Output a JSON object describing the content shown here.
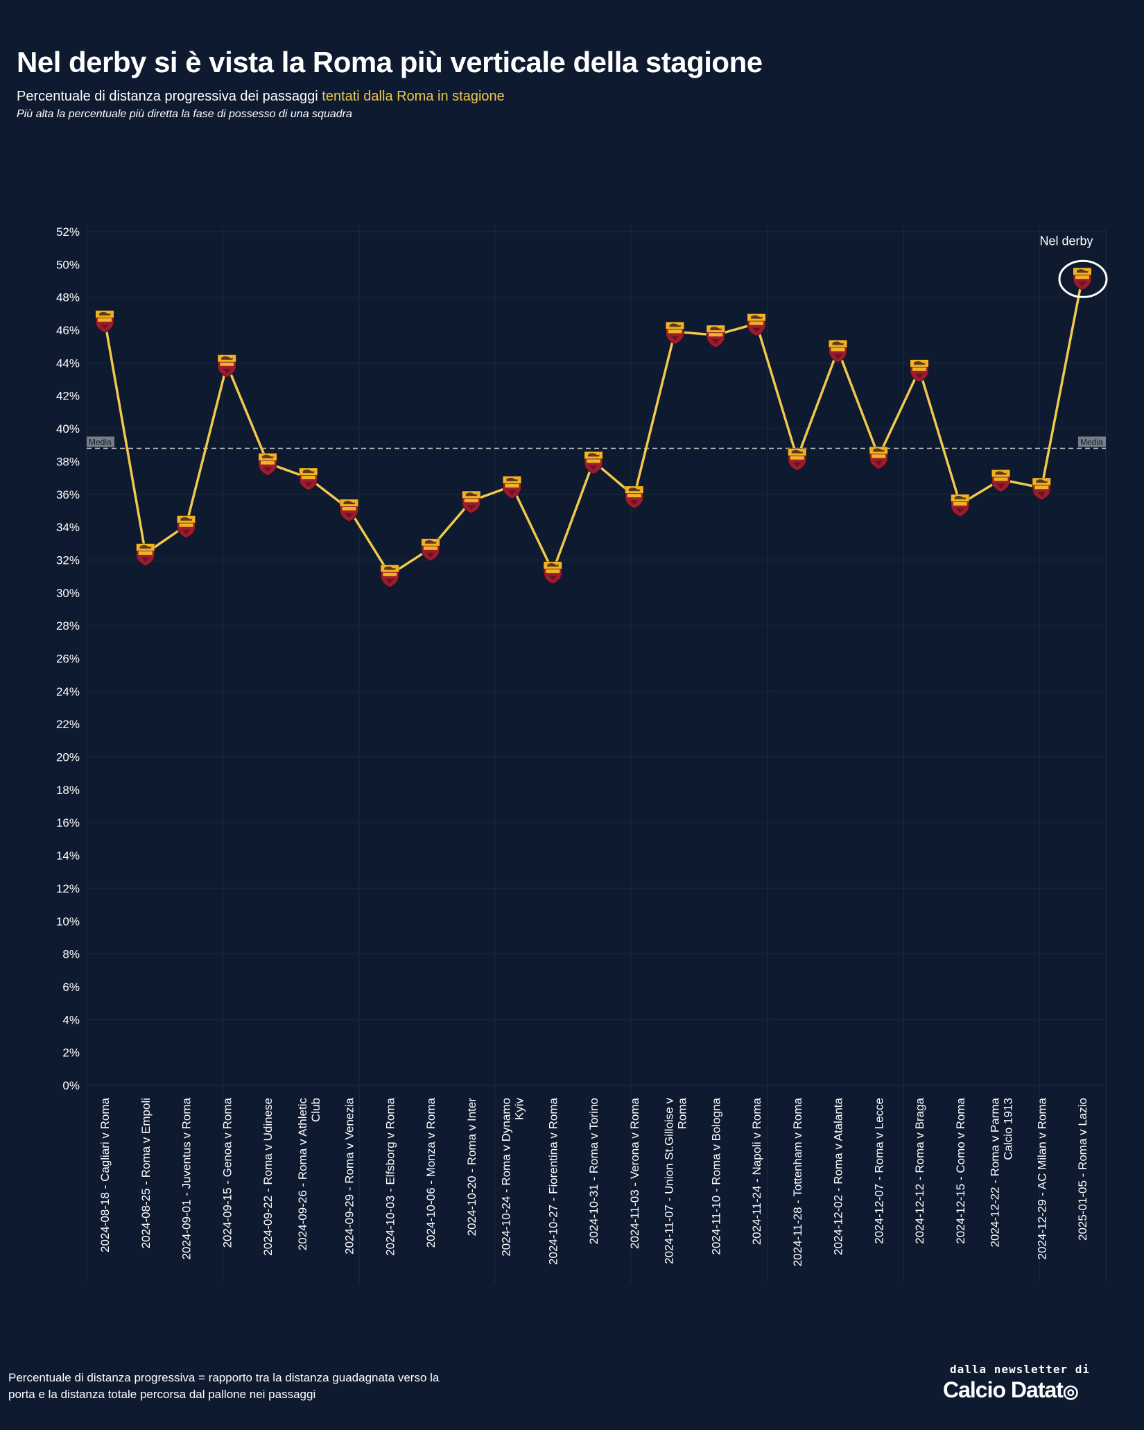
{
  "title": "Nel derby si è vista la Roma più verticale della stagione",
  "subtitle_prefix": "Percentuale di distanza progressiva dei passaggi ",
  "subtitle_highlight": "tentati dalla Roma in stagione",
  "note": "Più alta la percentuale più diretta la fase di possesso di una squadra",
  "footnote_lines": [
    "Percentuale di distanza progressiva = rapporto tra la distanza guadagnata verso la",
    "porta e la distanza totale percorsa dal pallone nei passaggi"
  ],
  "brand": {
    "line1": "dalla newsletter di",
    "line2": "Calcio Datat",
    "ball_icon": "soccer-ball-icon"
  },
  "colors": {
    "background": "#0d1a2f",
    "line": "#f2c94c",
    "grid": "#1b2e3a",
    "average_line": "#c8c8c8",
    "badge_red": "#9b1b30",
    "badge_gold": "#f0b323"
  },
  "chart_data": {
    "type": "line",
    "ylim": [
      0,
      52
    ],
    "yticks": [
      0,
      2,
      4,
      6,
      8,
      10,
      12,
      14,
      16,
      18,
      20,
      22,
      24,
      26,
      28,
      30,
      32,
      34,
      36,
      38,
      40,
      42,
      44,
      46,
      48,
      50,
      52
    ],
    "ytick_suffix": "%",
    "grid": true,
    "marker_icon": "roma-badge-icon",
    "average": {
      "label": "Media",
      "value": 38.8
    },
    "annotation": {
      "text": "Nel derby",
      "target_index": 24
    },
    "categories": [
      [
        "2024-08-18 - Cagliari v Roma"
      ],
      [
        "2024-08-25 - Roma v Empoli"
      ],
      [
        "2024-09-01 - Juventus v Roma"
      ],
      [
        "2024-09-15 - Genoa v Roma"
      ],
      [
        "2024-09-22 - Roma v Udinese"
      ],
      [
        "2024-09-26 - Roma v Athletic",
        "Club"
      ],
      [
        "2024-09-29 - Roma v Venezia"
      ],
      [
        "2024-10-03 - Elfsborg v Roma"
      ],
      [
        "2024-10-06 - Monza v Roma"
      ],
      [
        "2024-10-20 - Roma v Inter"
      ],
      [
        "2024-10-24 - Roma v Dynamo",
        "Kyiv"
      ],
      [
        "2024-10-27 - Fiorentina v Roma"
      ],
      [
        "2024-10-31 - Roma v Torino"
      ],
      [
        "2024-11-03 - Verona v Roma"
      ],
      [
        "2024-11-07 - Union St.Gilloise v",
        "Roma"
      ],
      [
        "2024-11-10 - Roma v Bologna"
      ],
      [
        "2024-11-24 - Napoli v Roma"
      ],
      [
        "2024-11-28 - Tottenham v Roma"
      ],
      [
        "2024-12-02 - Roma v Atalanta"
      ],
      [
        "2024-12-07 - Roma v Lecce"
      ],
      [
        "2024-12-12 - Roma v Braga"
      ],
      [
        "2024-12-15 - Como v Roma"
      ],
      [
        "2024-12-22 - Roma v Parma",
        "Calcio 1913"
      ],
      [
        "2024-12-29 - AC Milan v Roma"
      ],
      [
        "2025-01-05 - Roma v Lazio"
      ]
    ],
    "series": [
      {
        "values": [
          46.6,
          32.4,
          34.1,
          43.9,
          37.9,
          37.0,
          35.1,
          31.1,
          32.7,
          35.6,
          36.5,
          31.3,
          38.0,
          35.9,
          45.9,
          45.7,
          46.4,
          38.2,
          44.8,
          38.3,
          43.6,
          35.4,
          36.9,
          36.4,
          49.2
        ]
      }
    ]
  }
}
